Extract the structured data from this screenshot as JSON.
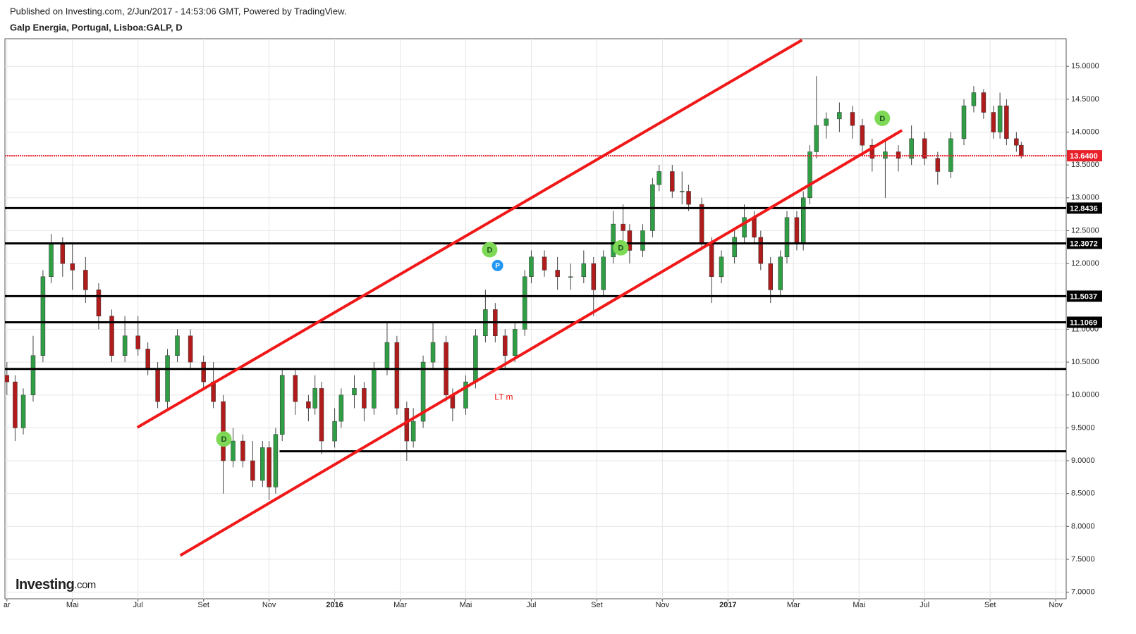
{
  "chart_data": {
    "type": "candlestick",
    "published": "Published on Investing.com, 2/Jun/2017 - 14:53:06 GMT, Powered by TradingView.",
    "title": "Galp Energia, Portugal, Lisboa:GALP, D",
    "logo": "Investing",
    "logo_suffix": ".com",
    "up_color": "#2f9e44",
    "down_color": "#b01c1c",
    "grid": true,
    "xlim": [
      1.94,
      34.32
    ],
    "ylim": [
      6.9,
      15.42
    ],
    "xticks": [
      {
        "value": 2,
        "label": "ar"
      },
      {
        "value": 4,
        "label": "Mai"
      },
      {
        "value": 6,
        "label": "Jul"
      },
      {
        "value": 8,
        "label": "Set"
      },
      {
        "value": 10,
        "label": "Nov"
      },
      {
        "value": 12,
        "label": "2016"
      },
      {
        "value": 14,
        "label": "Mar"
      },
      {
        "value": 16,
        "label": "Mai"
      },
      {
        "value": 18,
        "label": "Jul"
      },
      {
        "value": 20,
        "label": "Set"
      },
      {
        "value": 22,
        "label": "Nov"
      },
      {
        "value": 24,
        "label": "2017"
      },
      {
        "value": 26,
        "label": "Mar"
      },
      {
        "value": 28,
        "label": "Mai"
      },
      {
        "value": 30,
        "label": "Jul"
      },
      {
        "value": 32,
        "label": "Set"
      },
      {
        "value": 34,
        "label": "Nov"
      }
    ],
    "yticks": [
      {
        "value": 7,
        "label": "7.0000"
      },
      {
        "value": 7.5,
        "label": "7.5000"
      },
      {
        "value": 8,
        "label": "8.0000"
      },
      {
        "value": 8.5,
        "label": "8.5000"
      },
      {
        "value": 9,
        "label": "9.0000"
      },
      {
        "value": 9.5,
        "label": "9.5000"
      },
      {
        "value": 10,
        "label": "10.0000"
      },
      {
        "value": 10.5,
        "label": "10.5000"
      },
      {
        "value": 11,
        "label": "11.0000"
      },
      {
        "value": 11.5,
        "label": "11.5000"
      },
      {
        "value": 12,
        "label": "12.0000"
      },
      {
        "value": 12.5,
        "label": "12.5000"
      },
      {
        "value": 13,
        "label": "13.0000"
      },
      {
        "value": 13.5,
        "label": "13.5000"
      },
      {
        "value": 14,
        "label": "14.0000"
      },
      {
        "value": 14.5,
        "label": "14.5000"
      },
      {
        "value": 15,
        "label": "15.0000"
      }
    ],
    "x": [
      2.0,
      2.25,
      2.5,
      2.8,
      3.1,
      3.35,
      3.7,
      4.0,
      4.4,
      4.8,
      5.2,
      5.6,
      6.0,
      6.3,
      6.6,
      6.9,
      7.2,
      7.6,
      8.0,
      8.3,
      8.6,
      8.9,
      9.2,
      9.5,
      9.8,
      10.0,
      10.2,
      10.4,
      10.8,
      11.2,
      11.4,
      11.6,
      12.0,
      12.2,
      12.6,
      12.9,
      13.2,
      13.6,
      13.9,
      14.2,
      14.4,
      14.7,
      15.0,
      15.4,
      15.6,
      16.0,
      16.3,
      16.6,
      16.9,
      17.2,
      17.5,
      17.8,
      18.0,
      18.4,
      18.8,
      19.2,
      19.6,
      19.9,
      20.2,
      20.5,
      20.8,
      21.0,
      21.4,
      21.7,
      21.9,
      22.3,
      22.6,
      22.8,
      23.2,
      23.5,
      23.8,
      24.2,
      24.5,
      24.8,
      25.0,
      25.3,
      25.6,
      25.8,
      26.1,
      26.3,
      26.5,
      26.7,
      27.0,
      27.4,
      27.8,
      28.1,
      28.4,
      28.8,
      29.2,
      29.6,
      30.0,
      30.4,
      30.8,
      31.2,
      31.5,
      31.8,
      32.1,
      32.3,
      32.5,
      32.8,
      32.95
    ],
    "open": [
      10.3,
      10.2,
      9.5,
      10.0,
      10.6,
      11.8,
      12.3,
      12.0,
      11.9,
      11.6,
      11.2,
      10.6,
      10.9,
      10.7,
      10.4,
      9.9,
      10.6,
      10.9,
      10.5,
      10.2,
      9.9,
      9.0,
      9.3,
      9.0,
      8.7,
      9.2,
      8.6,
      9.4,
      10.3,
      9.9,
      9.8,
      10.1,
      9.3,
      9.6,
      10.0,
      10.1,
      9.8,
      10.4,
      10.8,
      9.8,
      9.3,
      9.6,
      10.5,
      10.8,
      10.0,
      9.8,
      10.2,
      10.9,
      11.3,
      10.9,
      10.6,
      11.0,
      11.8,
      12.1,
      11.9,
      11.8,
      11.8,
      12.0,
      11.6,
      12.1,
      12.6,
      12.5,
      12.2,
      12.5,
      13.2,
      13.4,
      13.1,
      13.1,
      12.9,
      12.3,
      11.8,
      12.1,
      12.4,
      12.7,
      12.4,
      12.0,
      11.6,
      12.1,
      12.7,
      12.3,
      13.0,
      13.7,
      14.1,
      14.2,
      14.3,
      14.1,
      13.8,
      13.6,
      13.7,
      13.6,
      13.9,
      13.6,
      13.4,
      13.9,
      14.4,
      14.6,
      14.3,
      14.0,
      14.4,
      13.9,
      13.8
    ],
    "high": [
      10.5,
      10.3,
      10.1,
      10.9,
      11.9,
      12.45,
      12.4,
      12.3,
      12.1,
      11.7,
      11.3,
      11.2,
      11.2,
      10.8,
      10.5,
      10.7,
      11.0,
      11.0,
      10.6,
      10.5,
      10.0,
      9.5,
      9.4,
      9.3,
      9.3,
      9.3,
      9.5,
      10.4,
      10.4,
      10.0,
      10.3,
      10.2,
      9.8,
      10.1,
      10.3,
      10.2,
      10.5,
      11.1,
      10.9,
      9.9,
      9.8,
      10.6,
      11.1,
      10.9,
      10.1,
      10.3,
      11.0,
      11.6,
      11.4,
      11.0,
      11.1,
      11.9,
      12.2,
      12.2,
      12.1,
      12.0,
      12.2,
      12.1,
      12.2,
      12.8,
      12.9,
      12.6,
      12.6,
      13.3,
      13.5,
      13.5,
      13.4,
      13.2,
      13.0,
      12.4,
      12.2,
      12.5,
      12.9,
      12.8,
      12.5,
      12.1,
      12.2,
      12.8,
      12.8,
      13.1,
      13.8,
      14.85,
      14.3,
      14.45,
      14.4,
      14.2,
      13.9,
      13.9,
      13.8,
      14.1,
      14.0,
      13.7,
      14.0,
      14.5,
      14.7,
      14.65,
      14.4,
      14.6,
      14.5,
      14.0,
      13.85
    ],
    "low": [
      10.0,
      9.3,
      9.4,
      9.9,
      10.5,
      11.7,
      11.8,
      11.6,
      11.4,
      11.0,
      10.5,
      10.5,
      10.6,
      10.3,
      9.8,
      9.8,
      10.5,
      10.4,
      10.1,
      9.8,
      8.5,
      8.9,
      8.9,
      8.6,
      8.6,
      8.4,
      8.5,
      9.3,
      9.7,
      9.6,
      9.7,
      9.1,
      9.2,
      9.5,
      9.8,
      9.6,
      9.7,
      10.3,
      9.7,
      9.0,
      9.2,
      9.5,
      10.4,
      9.9,
      9.6,
      9.7,
      10.1,
      10.8,
      10.8,
      10.4,
      10.5,
      10.9,
      11.7,
      11.8,
      11.6,
      11.6,
      11.7,
      11.2,
      11.5,
      12.0,
      12.3,
      12.0,
      12.1,
      12.4,
      13.1,
      13.0,
      12.9,
      12.8,
      12.2,
      11.4,
      11.7,
      12.0,
      12.3,
      12.3,
      11.9,
      11.4,
      11.5,
      12.0,
      12.2,
      12.2,
      12.9,
      13.6,
      13.9,
      14.0,
      13.9,
      13.7,
      13.4,
      13.0,
      13.4,
      13.5,
      13.5,
      13.2,
      13.3,
      13.8,
      14.3,
      14.2,
      13.9,
      13.9,
      13.8,
      13.7,
      13.6
    ],
    "close": [
      10.2,
      9.5,
      10.0,
      10.6,
      11.8,
      12.3,
      12.0,
      11.9,
      11.6,
      11.2,
      10.6,
      10.9,
      10.7,
      10.4,
      9.9,
      10.6,
      10.9,
      10.5,
      10.2,
      9.9,
      9.0,
      9.3,
      9.0,
      8.7,
      9.2,
      8.6,
      9.4,
      10.3,
      9.9,
      9.8,
      10.1,
      9.3,
      9.6,
      10.0,
      10.1,
      9.8,
      10.4,
      10.8,
      9.8,
      9.3,
      9.6,
      10.5,
      10.8,
      10.0,
      9.8,
      10.2,
      10.9,
      11.3,
      10.9,
      10.6,
      11.0,
      11.8,
      12.1,
      11.9,
      11.8,
      11.8,
      12.0,
      11.6,
      12.1,
      12.6,
      12.5,
      12.2,
      12.5,
      13.2,
      13.4,
      13.1,
      13.1,
      12.9,
      12.3,
      11.8,
      12.1,
      12.4,
      12.7,
      12.4,
      12.0,
      11.6,
      12.1,
      12.7,
      12.3,
      13.0,
      13.7,
      14.1,
      14.2,
      14.3,
      14.1,
      13.8,
      13.6,
      13.7,
      13.6,
      13.9,
      13.6,
      13.4,
      13.9,
      14.4,
      14.6,
      14.3,
      14.0,
      14.4,
      13.9,
      13.8,
      13.64
    ],
    "levels": [
      {
        "value": 13.64,
        "label": "13.6400",
        "color": "#e8202a",
        "dotted": true
      },
      {
        "value": 12.8436,
        "label": "12.8436",
        "color": "#000000"
      },
      {
        "value": 12.3072,
        "label": "12.3072",
        "color": "#000000"
      },
      {
        "value": 11.5037,
        "label": "11.5037",
        "color": "#000000"
      },
      {
        "value": 11.1069,
        "label": "11.1069",
        "color": "#000000"
      },
      {
        "value": 10.396,
        "color": "#000000"
      },
      {
        "value": 9.144,
        "start": 10.32,
        "color": "#000000"
      }
    ],
    "trend_lines": [
      {
        "x": [
          5.98,
          26.26
        ],
        "y": [
          9.507,
          15.4
        ],
        "color": "#f01818"
      },
      {
        "x": [
          7.29,
          29.31
        ],
        "y": [
          7.559,
          14.026
        ],
        "color": "#f01818"
      }
    ],
    "annotation": {
      "text": "LT m",
      "x": 17.16,
      "y": 9.96,
      "color": "#f01818"
    },
    "badges": [
      {
        "text": "D",
        "x": 8.62,
        "y": 9.33,
        "color": "#7ed957"
      },
      {
        "text": "D",
        "x": 16.73,
        "y": 12.21,
        "color": "#7ed957"
      },
      {
        "text": "D",
        "x": 20.73,
        "y": 12.24,
        "color": "#7ed957"
      },
      {
        "text": "D",
        "x": 28.71,
        "y": 14.21,
        "color": "#7ed957"
      },
      {
        "text": "P",
        "x": 16.97,
        "y": 11.97,
        "color": "#2196f3"
      }
    ]
  }
}
